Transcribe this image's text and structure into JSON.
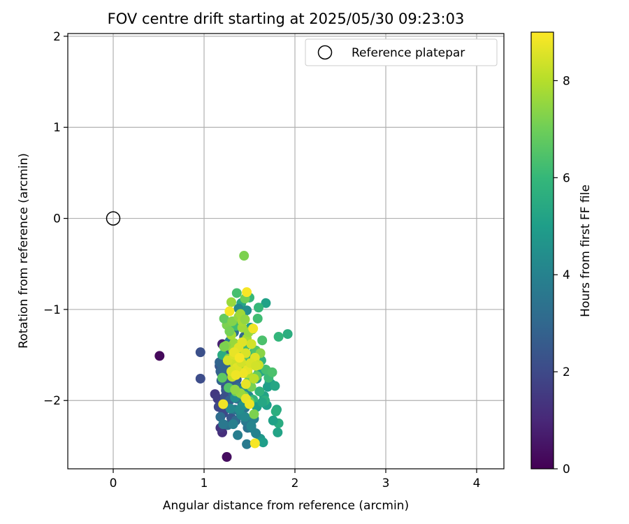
{
  "chart_data": {
    "type": "scatter",
    "title": "FOV centre drift starting at 2025/05/30 09:23:03",
    "xlabel": "Angular distance from reference (arcmin)",
    "ylabel": "Rotation from reference (arcmin)",
    "xlim": [
      -0.5,
      4.3
    ],
    "ylim": [
      -2.75,
      2.03
    ],
    "xticks": [
      0,
      1,
      2,
      3,
      4
    ],
    "yticks": [
      -2,
      -1,
      0,
      1,
      2
    ],
    "grid": true,
    "legend": {
      "location": "upper right",
      "entries": [
        "Reference platepar"
      ]
    },
    "reference_point": {
      "x": 0,
      "y": 0,
      "marker": "open-circle",
      "label": "Reference platepar"
    },
    "colorbar": {
      "label": "Hours from first FF file",
      "colormap": "viridis",
      "range": [
        0,
        9
      ],
      "ticks": [
        0,
        2,
        4,
        6,
        8
      ]
    },
    "colormap_stops": [
      "#440154",
      "#482878",
      "#3e4a89",
      "#31688e",
      "#26828e",
      "#1f9e89",
      "#35b779",
      "#6ece58",
      "#b5de2b",
      "#fde725"
    ],
    "series": [
      {
        "x": [
          1.25,
          0.51,
          0.96,
          0.96,
          1.2,
          1.18,
          1.2,
          1.12,
          1.15,
          1.18,
          1.22,
          1.24,
          1.26,
          1.19,
          1.17,
          1.21,
          1.23,
          1.28,
          1.3,
          1.19,
          1.16,
          1.21,
          1.26,
          1.31,
          1.24,
          1.22,
          1.18,
          1.17,
          1.27,
          1.33,
          1.29,
          1.36,
          1.23,
          1.18,
          1.26,
          1.3,
          1.34,
          1.21,
          1.28,
          1.32,
          1.38,
          1.25,
          1.2,
          1.36,
          1.35,
          1.4,
          1.42,
          1.45,
          1.3,
          1.27,
          1.22,
          1.39,
          1.44,
          1.33,
          1.28,
          1.35,
          1.48,
          1.46,
          1.37,
          1.32,
          1.47,
          1.52,
          1.55,
          1.41,
          1.29,
          1.34,
          1.44,
          1.5,
          1.58,
          1.6,
          1.49,
          1.43,
          1.52,
          1.62,
          1.65,
          1.57,
          1.45,
          1.39,
          1.53,
          1.4,
          1.66,
          1.7,
          1.72,
          1.63,
          1.56,
          1.48,
          1.74,
          1.78,
          1.8,
          1.82,
          1.79,
          1.81,
          1.76,
          1.69,
          1.67,
          1.61,
          1.54,
          1.58,
          1.64,
          1.71,
          1.63,
          1.55,
          1.46,
          1.68,
          1.75,
          1.51,
          1.43,
          1.41,
          1.5,
          1.59,
          1.38,
          1.47,
          1.57,
          1.45,
          1.36,
          1.92,
          1.82,
          1.68,
          1.6,
          1.53,
          1.64,
          1.56,
          1.58,
          1.48,
          1.52,
          1.42,
          1.4,
          1.45,
          1.38,
          1.33,
          1.3,
          1.25,
          1.22,
          1.2,
          1.27,
          1.35,
          1.44,
          1.5,
          1.55,
          1.62,
          1.31,
          1.38,
          1.42,
          1.47,
          1.52,
          1.28,
          1.24,
          1.32,
          1.36,
          1.43,
          1.48,
          1.55,
          1.4,
          1.34,
          1.27,
          1.22,
          1.36,
          1.45,
          1.3,
          1.42,
          1.44,
          1.4,
          1.45,
          1.49,
          1.34,
          1.31,
          1.26,
          1.33,
          1.38,
          1.46,
          1.52,
          1.56,
          1.6,
          1.48,
          1.43,
          1.36,
          1.3,
          1.41,
          1.46,
          1.5,
          1.54,
          1.28,
          1.33,
          1.39,
          1.35,
          1.42,
          1.51,
          1.57,
          1.47,
          1.21,
          1.46,
          1.56
        ],
        "y": [
          -2.62,
          -1.51,
          -1.47,
          -1.76,
          -2.35,
          -2.3,
          -1.38,
          -1.93,
          -1.98,
          -2.03,
          -2.1,
          -1.85,
          -1.8,
          -1.7,
          -1.62,
          -1.57,
          -1.52,
          -1.47,
          -1.43,
          -1.78,
          -2.07,
          -2.14,
          -2.05,
          -1.95,
          -1.89,
          -1.75,
          -1.68,
          -1.58,
          -1.62,
          -1.66,
          -1.72,
          -1.77,
          -1.96,
          -2.18,
          -2.27,
          -2.19,
          -2.1,
          -2.26,
          -2.0,
          -1.92,
          -1.86,
          -1.55,
          -1.5,
          -1.98,
          -2.22,
          -2.14,
          -2.04,
          -2.08,
          -1.82,
          -1.74,
          -1.66,
          -1.4,
          -1.3,
          -1.25,
          -1.35,
          -1.18,
          -2.3,
          -2.23,
          -2.38,
          -2.26,
          -2.48,
          -2.3,
          -2.2,
          -2.16,
          -2.09,
          -1.97,
          -1.88,
          -1.82,
          -1.76,
          -1.7,
          -1.95,
          -2.05,
          -2.28,
          -2.42,
          -2.46,
          -2.36,
          -2.18,
          -2.1,
          -2.02,
          -1.44,
          -1.95,
          -1.85,
          -1.8,
          -1.68,
          -1.59,
          -1.52,
          -1.82,
          -1.84,
          -2.1,
          -2.25,
          -2.12,
          -2.35,
          -2.22,
          -2.05,
          -2.0,
          -1.9,
          -1.99,
          -2.07,
          -2.02,
          -1.75,
          -1.56,
          -1.47,
          -1.4,
          -1.66,
          -1.69,
          -1.2,
          -1.05,
          -0.93,
          -0.87,
          -1.1,
          -0.99,
          -1.01,
          -1.45,
          -1.5,
          -1.55,
          -1.27,
          -1.3,
          -0.93,
          -0.98,
          -1.22,
          -1.34,
          -1.6,
          -1.73,
          -1.8,
          -1.85,
          -1.64,
          -1.57,
          -1.7,
          -1.5,
          -1.37,
          -1.28,
          -1.17,
          -1.1,
          -1.75,
          -1.86,
          -1.9,
          -1.95,
          -2.01,
          -2.15,
          -1.48,
          -1.13,
          -1.08,
          -1.2,
          -1.32,
          -1.38,
          -1.24,
          -1.4,
          -1.45,
          -1.61,
          -1.66,
          -1.7,
          -1.76,
          -1.92,
          -1.88,
          -1.54,
          -1.41,
          -0.82,
          -0.88,
          -0.92,
          -1.13,
          -0.41,
          -1.05,
          -1.11,
          -1.25,
          -1.6,
          -1.74,
          -1.56,
          -1.5,
          -1.42,
          -1.48,
          -1.38,
          -1.53,
          -1.61,
          -1.66,
          -1.7,
          -1.64,
          -1.68,
          -1.58,
          -1.98,
          -2.04,
          -1.21,
          -1.02,
          -1.47,
          -1.53,
          -1.72,
          -1.36,
          -1.59,
          -1.62,
          -0.81,
          -2.04,
          -1.82,
          -2.47
        ],
        "hours": [
          0.3,
          0.2,
          2.2,
          2.1,
          1.2,
          1.4,
          0.8,
          1.5,
          1.6,
          1.7,
          1.8,
          2.0,
          2.1,
          2.3,
          2.4,
          2.2,
          2.5,
          2.6,
          2.8,
          2.9,
          1.9,
          2.0,
          2.2,
          2.3,
          2.5,
          2.6,
          2.8,
          2.9,
          3.0,
          3.1,
          2.4,
          2.7,
          2.2,
          3.2,
          3.3,
          2.4,
          3.5,
          3.6,
          2.8,
          3.0,
          3.2,
          2.7,
          5.5,
          2.9,
          3.1,
          3.3,
          3.4,
          3.5,
          2.6,
          2.7,
          2.9,
          3.3,
          3.0,
          3.4,
          3.8,
          6.2,
          3.4,
          3.6,
          3.8,
          3.9,
          3.7,
          3.9,
          4.0,
          4.1,
          4.2,
          4.4,
          4.5,
          4.6,
          4.7,
          4.8,
          4.3,
          4.6,
          4.1,
          4.8,
          5.0,
          4.0,
          4.2,
          4.4,
          4.5,
          4.9,
          5.2,
          5.0,
          5.1,
          5.3,
          5.4,
          5.5,
          5.0,
          5.3,
          5.4,
          5.5,
          5.6,
          5.2,
          5.1,
          5.0,
          5.7,
          5.8,
          5.9,
          5.0,
          5.3,
          6.1,
          5.8,
          5.9,
          6.1,
          6.3,
          6.4,
          4.9,
          5.1,
          5.3,
          6.0,
          6.2,
          4.2,
          4.5,
          6.5,
          6.6,
          6.3,
          5.6,
          5.9,
          5.1,
          6.0,
          6.6,
          6.4,
          6.7,
          6.9,
          7.0,
          7.1,
          7.2,
          7.4,
          7.3,
          7.5,
          7.6,
          7.8,
          7.2,
          6.8,
          6.7,
          6.5,
          6.9,
          7.1,
          7.0,
          7.2,
          7.4,
          7.3,
          7.5,
          7.7,
          7.8,
          7.9,
          7.1,
          7.4,
          7.6,
          7.7,
          7.9,
          8.0,
          8.1,
          7.6,
          7.5,
          7.3,
          7.2,
          6.3,
          7.0,
          7.6,
          7.8,
          7.2,
          7.7,
          7.5,
          7.6,
          8.3,
          8.2,
          8.4,
          8.5,
          8.6,
          8.5,
          8.4,
          8.6,
          8.3,
          8.7,
          8.8,
          8.6,
          8.5,
          8.4,
          8.7,
          8.8,
          8.8,
          8.9,
          8.7,
          8.9,
          8.8,
          8.6,
          8.5,
          8.4,
          8.9,
          8.8,
          8.7,
          8.9
        ]
      }
    ]
  }
}
